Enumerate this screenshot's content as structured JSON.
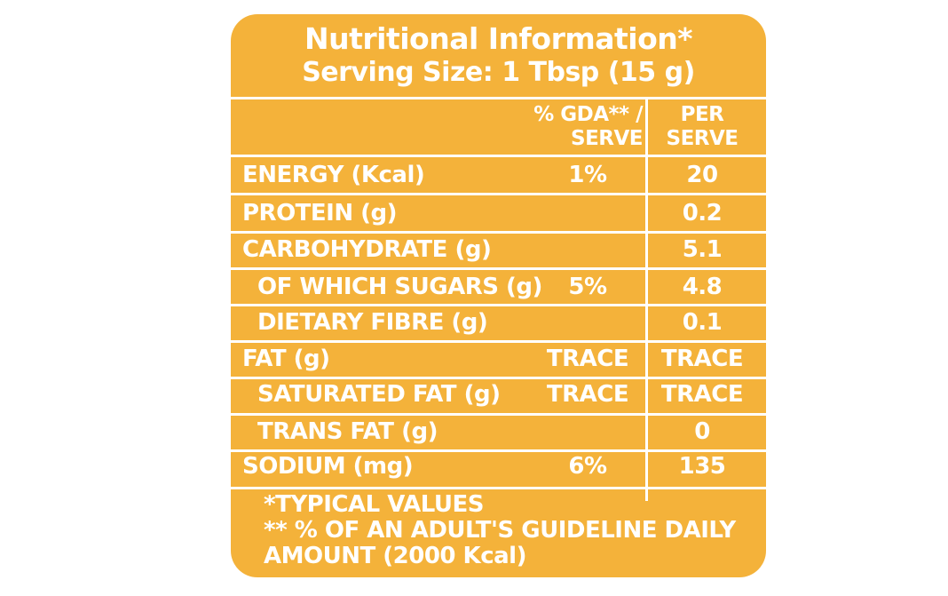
{
  "label": {
    "title": "Nutritional Information*",
    "serving_size": "Serving Size: 1 Tbsp (15 g)",
    "columns": {
      "gda_line1": "% GDA** /",
      "gda_line2": "SERVE",
      "per_line1": "PER",
      "per_line2": "SERVE"
    },
    "rows": [
      {
        "label": "ENERGY (Kcal)",
        "gda": "1%",
        "per": "20",
        "indent": false
      },
      {
        "label": "PROTEIN (g)",
        "gda": "",
        "per": "0.2",
        "indent": false
      },
      {
        "label": "CARBOHYDRATE (g)",
        "gda": "",
        "per": "5.1",
        "indent": false
      },
      {
        "label": "OF WHICH SUGARS (g)",
        "gda": "5%",
        "per": "4.8",
        "indent": true
      },
      {
        "label": "DIETARY FIBRE (g)",
        "gda": "",
        "per": "0.1",
        "indent": true
      },
      {
        "label": "FAT (g)",
        "gda": "TRACE",
        "per": "TRACE",
        "indent": false
      },
      {
        "label": "SATURATED FAT (g)",
        "gda": "TRACE",
        "per": "TRACE",
        "indent": true
      },
      {
        "label": "TRANS FAT (g)",
        "gda": "",
        "per": "0",
        "indent": true
      },
      {
        "label": "SODIUM (mg)",
        "gda": "6%",
        "per": "135",
        "indent": false
      }
    ],
    "footnotes": {
      "line1": "*TYPICAL VALUES",
      "line2": "** % OF AN ADULT'S GUIDELINE DAILY",
      "line3": "AMOUNT (2000 Kcal)"
    }
  },
  "colors": {
    "panel": "#f4b23a",
    "text": "#ffffff",
    "page": "#ffffff"
  }
}
